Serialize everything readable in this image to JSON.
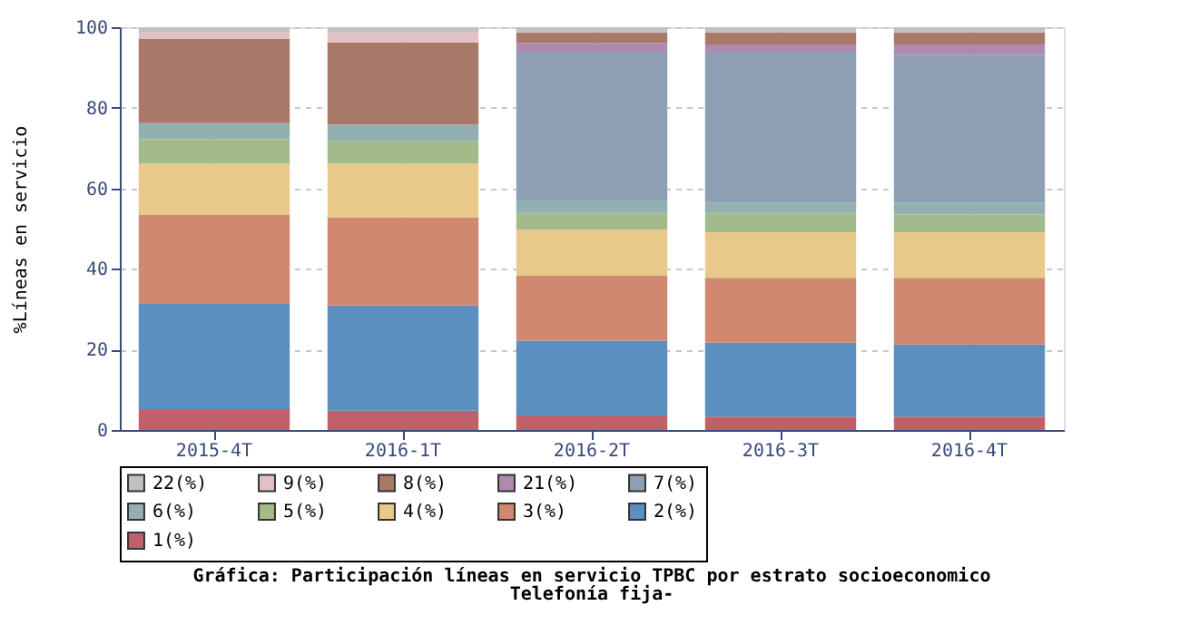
{
  "chart_data": {
    "type": "bar",
    "stacked": true,
    "title": "Gráfica: Participación líneas en servicio TPBC por estrato socioeconomico",
    "subtitle": "Telefonía fija-",
    "ylabel": "%Líneas en servicio",
    "categories": [
      "2015-4T",
      "2016-1T",
      "2016-2T",
      "2016-3T",
      "2016-4T"
    ],
    "ylim": [
      0,
      100
    ],
    "yticks": [
      0,
      20,
      40,
      60,
      80,
      100
    ],
    "grid": true,
    "legend": "bottom",
    "series": [
      {
        "name": "1(%)",
        "color": "#c0606a",
        "values": [
          5.2,
          4.8,
          3.6,
          3.3,
          3.3
        ]
      },
      {
        "name": "2(%)",
        "color": "#5b8fbf",
        "values": [
          26.1,
          26.1,
          18.6,
          18.4,
          17.9
        ]
      },
      {
        "name": "3(%)",
        "color": "#d08870",
        "values": [
          22.2,
          21.9,
          16.1,
          16.1,
          16.6
        ]
      },
      {
        "name": "4(%)",
        "color": "#e8c98a",
        "values": [
          12.6,
          13.3,
          11.4,
          11.3,
          11.3
        ]
      },
      {
        "name": "5(%)",
        "color": "#a3bb8a",
        "values": [
          6.1,
          5.6,
          4.2,
          4.8,
          4.4
        ]
      },
      {
        "name": "6(%)",
        "color": "#93b0b0",
        "values": [
          4.0,
          4.1,
          3.1,
          2.6,
          3.0
        ]
      },
      {
        "name": "7(%)",
        "color": "#8f9fb3",
        "values": [
          null,
          null,
          36.9,
          37.4,
          36.7
        ]
      },
      {
        "name": "21(%)",
        "color": "#b08aae",
        "values": [
          null,
          null,
          2.2,
          1.8,
          2.5
        ]
      },
      {
        "name": "8(%)",
        "color": "#a87868",
        "values": [
          20.9,
          20.4,
          2.6,
          3.0,
          3.0
        ]
      },
      {
        "name": "9(%)",
        "color": "#e3c0c3",
        "values": [
          1.6,
          2.5,
          null,
          null,
          null
        ]
      },
      {
        "name": "22(%)",
        "color": "#c0c0c0",
        "values": [
          1.3,
          1.3,
          1.3,
          1.3,
          1.3
        ]
      }
    ]
  }
}
